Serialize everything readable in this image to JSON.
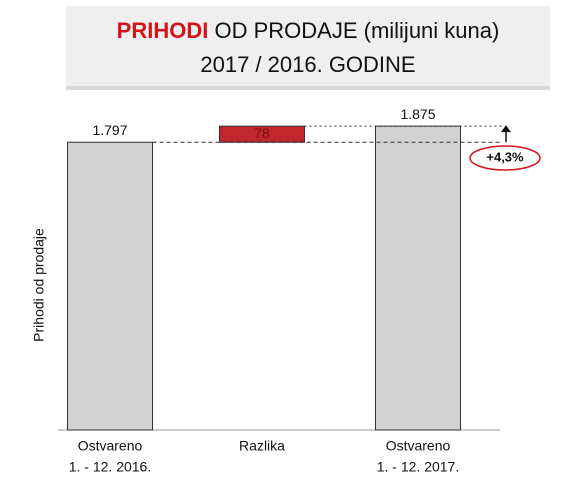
{
  "chart_data": {
    "type": "waterfall",
    "title_parts": [
      "PRIHODI",
      "OD PRODAJE (milijuni kuna)"
    ],
    "subtitle": "2017 / 2016. GODINE",
    "y_label": "Prihodi od prodaje",
    "categories": [
      [
        "Ostvareno",
        "1. - 12. 2016."
      ],
      [
        "Razlika"
      ],
      [
        "Ostvareno",
        "1. - 12. 2017."
      ]
    ],
    "measure": [
      "absolute",
      "relative",
      "absolute"
    ],
    "values": [
      1797,
      78,
      1875
    ],
    "value_labels": [
      "1.797",
      "78",
      "1.875"
    ],
    "colors": [
      "#d3d2d2",
      "#c1272d",
      "#d3d2d2"
    ],
    "title_highlight_color": "#d4141b",
    "annotation": "+4,3%",
    "ylim": [
      400,
      1900
    ]
  }
}
